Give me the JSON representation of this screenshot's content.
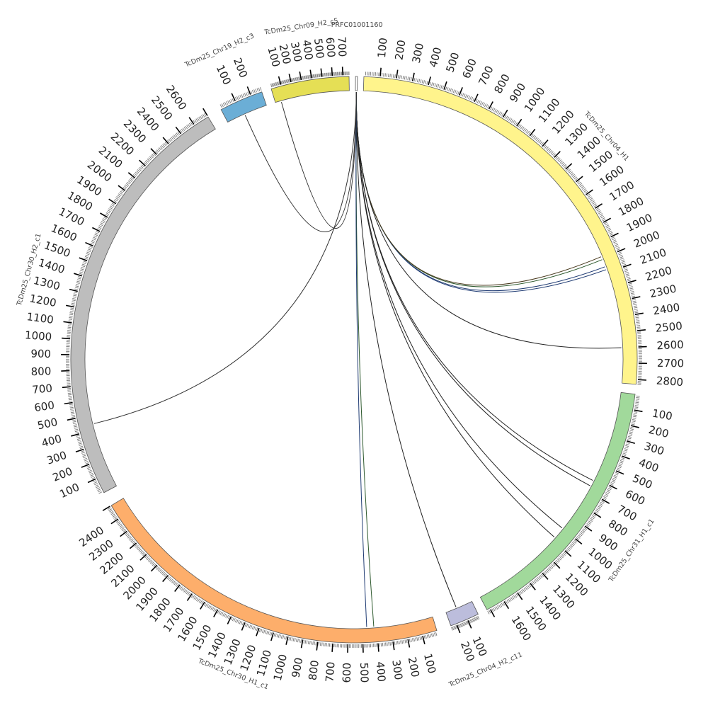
{
  "segments": [
    {
      "id": "prfc",
      "label": "PRFC01001160",
      "length": 30,
      "color": "#ffffff",
      "label_kind": "straight"
    },
    {
      "id": "chr04_h1",
      "label": "TcDm25_Chr04_H1",
      "length": 2830,
      "color": "#fff48c",
      "label_kind": "arc",
      "ticks": [
        100,
        200,
        300,
        400,
        500,
        600,
        700,
        800,
        900,
        1000,
        1100,
        1200,
        1300,
        1400,
        1500,
        1600,
        1700,
        1800,
        1900,
        2000,
        2100,
        2200,
        2300,
        2400,
        2500,
        2600,
        2700,
        2800
      ]
    },
    {
      "id": "chr31_h1_c1",
      "label": "TcDm25_Chr31_H1_c1",
      "length": 1720,
      "color": "#a1d99b",
      "label_kind": "arc",
      "ticks": [
        100,
        200,
        300,
        400,
        500,
        600,
        700,
        800,
        900,
        1000,
        1100,
        1200,
        1300,
        1400,
        1500,
        1600
      ]
    },
    {
      "id": "chr04_h2_c11",
      "label": "TcDm25_Chr04_H2_c11",
      "length": 250,
      "color": "#bcbddc",
      "label_kind": "arc",
      "ticks": [
        100,
        200
      ]
    },
    {
      "id": "chr30_h1_c1",
      "label": "TcDm25_Chr30_H1_c1",
      "length": 2500,
      "color": "#fdae6b",
      "label_kind": "arc",
      "ticks": [
        100,
        200,
        300,
        400,
        500,
        600,
        700,
        800,
        900,
        1000,
        1100,
        1200,
        1300,
        1400,
        1500,
        1600,
        1700,
        1800,
        1900,
        2000,
        2100,
        2200,
        2300,
        2400
      ]
    },
    {
      "id": "chr30_h2_c1",
      "label": "TcDm25_Chr30_H2_c1",
      "length": 2700,
      "color": "#bdbdbd",
      "label_kind": "arc",
      "ticks": [
        100,
        200,
        300,
        400,
        500,
        600,
        700,
        800,
        900,
        1000,
        1100,
        1200,
        1300,
        1400,
        1500,
        1600,
        1700,
        1800,
        1900,
        2000,
        2100,
        2200,
        2300,
        2400,
        2500,
        2600
      ]
    },
    {
      "id": "chr19_h2_c3",
      "label": "TcDm25_Chr19_H2_c3",
      "length": 270,
      "color": "#6baed6",
      "label_kind": "arc",
      "ticks": [
        100,
        200
      ]
    },
    {
      "id": "chr09_h2_c5",
      "label": "TcDm25_Chr09_H2_c5",
      "length": 760,
      "color": "#e5df55",
      "label_kind": "arc",
      "ticks": [
        100,
        200,
        300,
        400,
        500,
        600,
        700
      ]
    }
  ],
  "links": [
    {
      "source": "prfc",
      "target_segment": "chr04_h1",
      "target_pos": 2080,
      "color": "#1f3b73"
    },
    {
      "source": "prfc",
      "target_segment": "chr04_h1",
      "target_pos": 2060,
      "color": "#1f3b73"
    },
    {
      "source": "prfc",
      "target_segment": "chr04_h1",
      "target_pos": 2010,
      "color": "#2e5a2e"
    },
    {
      "source": "prfc",
      "target_segment": "chr04_h1",
      "target_pos": 1990,
      "color": "#4a3b1f"
    },
    {
      "source": "prfc",
      "target_segment": "chr04_h1",
      "target_pos": 2600,
      "color": "#222222"
    },
    {
      "source": "prfc",
      "target_segment": "chr31_h1_c1",
      "target_pos": 620,
      "color": "#222222"
    },
    {
      "source": "prfc",
      "target_segment": "chr31_h1_c1",
      "target_pos": 660,
      "color": "#222222"
    },
    {
      "source": "prfc",
      "target_segment": "chr31_h1_c1",
      "target_pos": 1000,
      "color": "#222222"
    },
    {
      "source": "prfc",
      "target_segment": "chr31_h1_c1",
      "target_pos": 1080,
      "color": "#222222"
    },
    {
      "source": "prfc",
      "target_segment": "chr04_h2_c11",
      "target_pos": 150,
      "color": "#222222"
    },
    {
      "source": "prfc",
      "target_segment": "chr30_h1_c1",
      "target_pos": 420,
      "color": "#2e5a2e"
    },
    {
      "source": "prfc",
      "target_segment": "chr30_h1_c1",
      "target_pos": 470,
      "color": "#1f3b73"
    },
    {
      "source": "prfc",
      "target_segment": "chr30_h2_c1",
      "target_pos": 440,
      "color": "#333333"
    },
    {
      "source": "prfc",
      "target_segment": "chr19_h2_c3",
      "target_pos": 120,
      "color": "#333333"
    },
    {
      "source": "prfc",
      "target_segment": "chr09_h2_c5",
      "target_pos": 60,
      "color": "#333333"
    }
  ]
}
